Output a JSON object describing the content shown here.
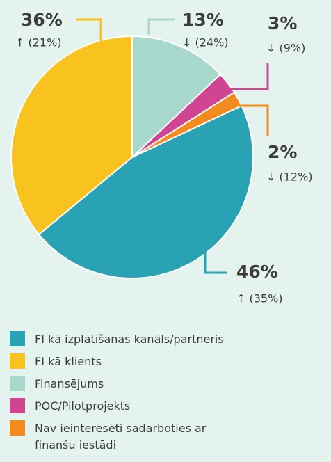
{
  "chart_data": {
    "type": "pie",
    "categories": [
      "FI kā izplatīšanas kanāls/partneris",
      "FI kā klients",
      "Finansējums",
      "POC/Pilotprojekts",
      "Nav ieinteresēti sadarboties ar finanšu iestādi"
    ],
    "values": [
      46,
      36,
      13,
      3,
      2
    ],
    "value_labels": [
      "46%",
      "36%",
      "13%",
      "3%",
      "2%"
    ],
    "changes": [
      "↑ (35%)",
      "↑ (21%)",
      "↓ (24%)",
      "↓ (9%)",
      "↓ (12%)"
    ],
    "colors": [
      "#29a3b3",
      "#f9c31f",
      "#a8d8cc",
      "#cf4592",
      "#f28a1d"
    ]
  }
}
